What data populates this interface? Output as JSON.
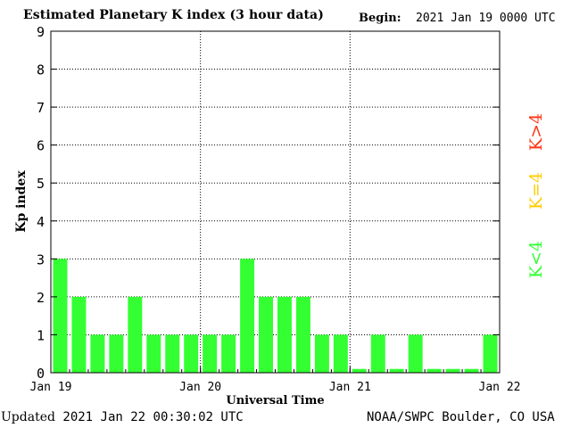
{
  "header": {
    "title": "Estimated Planetary K index (3 hour data)",
    "begin_label": "Begin:",
    "begin_value": "2021 Jan 19 0000 UTC"
  },
  "footer": {
    "updated_label": "Updated",
    "updated_value": "2021 Jan 22 00:30:02 UTC",
    "credit": "NOAA/SWPC Boulder, CO USA"
  },
  "legend": {
    "items": [
      {
        "label": "K<4",
        "color": "#33ff33"
      },
      {
        "label": "K=4",
        "color": "#ffcc00"
      },
      {
        "label": "K>4",
        "color": "#ff3311"
      }
    ]
  },
  "chart_data": {
    "type": "bar",
    "title": "Estimated Planetary K index (3 hour data)",
    "xlabel": "Universal Time",
    "ylabel": "Kp index",
    "ylim": [
      0,
      9
    ],
    "yticks": [
      "0",
      "1",
      "2",
      "3",
      "4",
      "5",
      "6",
      "7",
      "8",
      "9"
    ],
    "xticks": [
      "Jan 19",
      "Jan 20",
      "Jan 21",
      "Jan 22"
    ],
    "grid": "dotted",
    "bar_color": "#33ff33",
    "values": [
      3,
      2,
      1,
      1,
      2,
      1,
      1,
      1,
      1,
      1,
      3,
      2,
      2,
      2,
      1,
      1,
      0.1,
      1,
      0.1,
      1,
      0.1,
      0.1,
      0.1,
      1
    ]
  }
}
